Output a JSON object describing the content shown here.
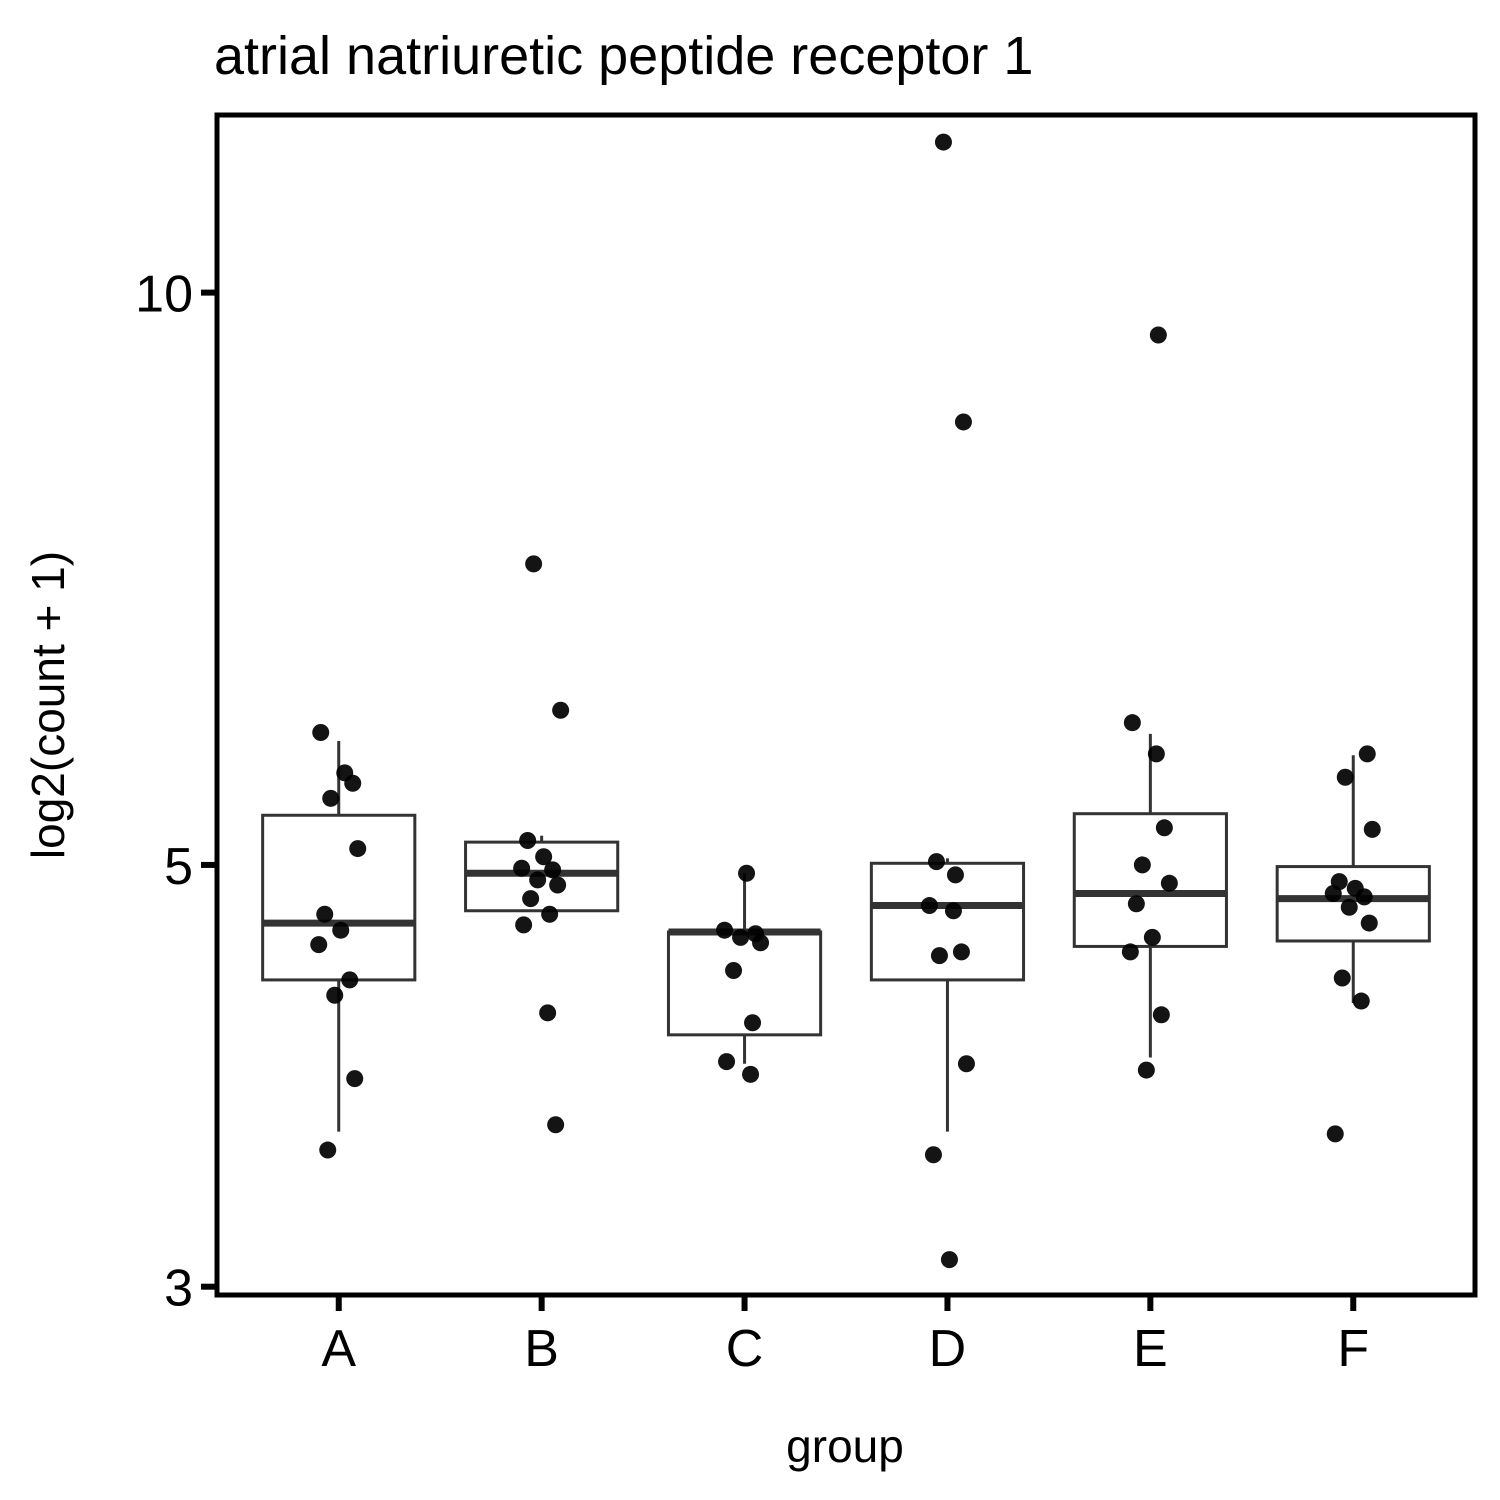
{
  "chart_data": {
    "type": "boxplot",
    "title": "atrial natriuretic peptide receptor 1",
    "xlabel": "group",
    "ylabel": "log2(count + 1)",
    "y_scale": "log",
    "ylim": [
      2.97,
      12.4
    ],
    "y_ticks": [
      {
        "value": 3,
        "label": "3"
      },
      {
        "value": 5,
        "label": "5"
      },
      {
        "value": 10,
        "label": "10"
      }
    ],
    "categories": [
      "A",
      "B",
      "C",
      "D",
      "E",
      "F"
    ],
    "grid": false,
    "legend": "none",
    "boxes": [
      {
        "group": "A",
        "lower_whisker": 3.62,
        "q1": 4.35,
        "median": 4.66,
        "q3": 5.31,
        "upper_whisker": 5.81
      },
      {
        "group": "B",
        "lower_whisker": 4.73,
        "q1": 4.73,
        "median": 4.95,
        "q3": 5.14,
        "upper_whisker": 5.18
      },
      {
        "group": "C",
        "lower_whisker": 3.93,
        "q1": 4.07,
        "median": 4.61,
        "q3": 4.61,
        "upper_whisker": 4.95
      },
      {
        "group": "D",
        "lower_whisker": 3.62,
        "q1": 4.35,
        "median": 4.76,
        "q3": 5.01,
        "upper_whisker": 5.04
      },
      {
        "group": "E",
        "lower_whisker": 3.96,
        "q1": 4.53,
        "median": 4.83,
        "q3": 5.32,
        "upper_whisker": 5.86
      },
      {
        "group": "F",
        "lower_whisker": 4.23,
        "q1": 4.56,
        "median": 4.8,
        "q3": 4.99,
        "upper_whisker": 5.71
      }
    ],
    "points": [
      {
        "group": "A",
        "values": [
          5.87,
          5.59,
          5.52,
          5.42,
          5.1,
          4.71,
          4.62,
          4.54,
          4.35,
          4.27,
          3.86,
          3.54
        ]
      },
      {
        "group": "B",
        "values": [
          7.2,
          6.03,
          5.15,
          5.05,
          4.98,
          4.97,
          4.91,
          4.88,
          4.8,
          4.71,
          4.65,
          4.18,
          3.65
        ]
      },
      {
        "group": "C",
        "values": [
          4.95,
          4.62,
          4.6,
          4.58,
          4.55,
          4.4,
          4.13,
          3.94,
          3.88
        ]
      },
      {
        "group": "D",
        "values": [
          12.0,
          8.55,
          5.02,
          4.94,
          4.76,
          4.73,
          4.5,
          4.48,
          3.93,
          3.52,
          3.1
        ]
      },
      {
        "group": "E",
        "values": [
          9.5,
          5.94,
          5.72,
          5.23,
          5.0,
          4.89,
          4.77,
          4.58,
          4.5,
          4.17,
          3.9
        ]
      },
      {
        "group": "F",
        "values": [
          5.72,
          5.56,
          5.22,
          4.9,
          4.86,
          4.83,
          4.81,
          4.75,
          4.66,
          4.36,
          4.24,
          3.61
        ]
      }
    ]
  }
}
